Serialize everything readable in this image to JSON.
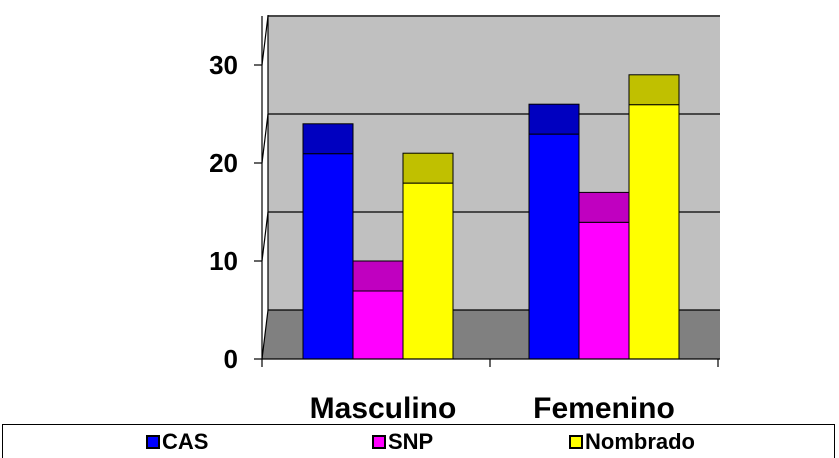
{
  "chart_data": {
    "type": "bar",
    "stacked_3d": true,
    "categories": [
      "Masculino",
      "Femenino"
    ],
    "series": [
      {
        "name": "CAS",
        "values": [
          24,
          26
        ],
        "color": "#0000FF",
        "top_color": "#0000C0"
      },
      {
        "name": "SNP",
        "values": [
          10,
          17
        ],
        "color": "#FF00FF",
        "top_color": "#C000C0"
      },
      {
        "name": "Nombrado",
        "values": [
          21,
          29
        ],
        "color": "#FFFF00",
        "top_color": "#C0C000"
      }
    ],
    "y_ticks": [
      "0",
      "10",
      "20",
      "30"
    ],
    "ylim": [
      0,
      35
    ],
    "grid": true,
    "title": "",
    "xlabel": "",
    "ylabel": "",
    "legend_position": "bottom",
    "colors": {
      "wall": "#C0C0C0",
      "floor": "#808080",
      "gridline": "#000000"
    }
  }
}
